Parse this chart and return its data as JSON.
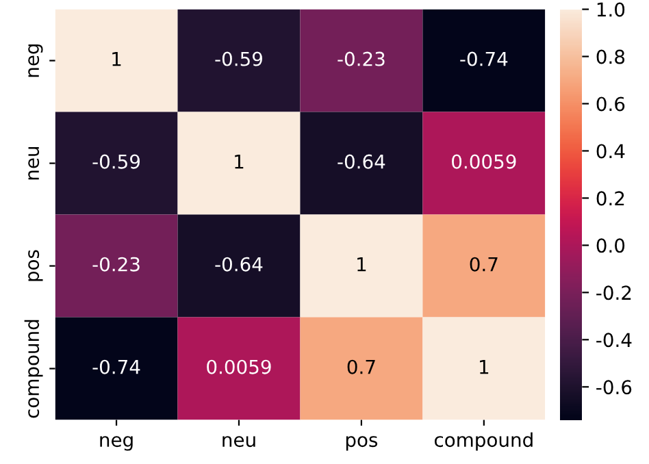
{
  "chart_data": {
    "type": "heatmap",
    "categories": [
      "neg",
      "neu",
      "pos",
      "compound"
    ],
    "y_categories": [
      "neg",
      "neu",
      "pos",
      "compound"
    ],
    "cells": [
      [
        1,
        -0.59,
        -0.23,
        -0.74
      ],
      [
        -0.59,
        1,
        -0.64,
        0.0059
      ],
      [
        -0.23,
        -0.64,
        1,
        0.7
      ],
      [
        -0.74,
        0.0059,
        0.7,
        1
      ]
    ],
    "data_labels": true,
    "clim": [
      -0.74,
      1.0
    ],
    "cticks": [
      -0.6,
      -0.4,
      -0.2,
      {
        "value": 0,
        "label": "0.0"
      },
      0.2,
      0.4,
      0.6,
      0.8,
      {
        "value": 1,
        "label": "1.0"
      }
    ]
  }
}
